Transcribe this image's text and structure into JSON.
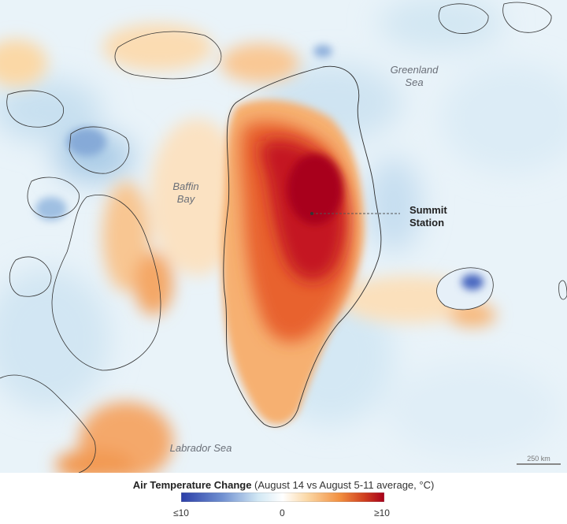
{
  "map": {
    "labels": {
      "greenland_sea_line1": "Greenland",
      "greenland_sea_line2": "Sea",
      "baffin_bay_line1": "Baffin",
      "baffin_bay_line2": "Bay",
      "labrador_sea": "Labrador Sea",
      "summit_station_line1": "Summit",
      "summit_station_line2": "Station"
    },
    "scale_bar": {
      "label": "250 km"
    }
  },
  "legend": {
    "title_bold": "Air Temperature Change",
    "title_rest": " (August 14 vs August 5-11 average, °C)",
    "min_label": "≤10",
    "mid_label": "0",
    "max_label": "≥10",
    "colors": [
      "#2b3ea8",
      "#6f8fd0",
      "#d2e8f4",
      "#ffffff",
      "#fbd8a6",
      "#f29040",
      "#d0401f",
      "#a8001a"
    ]
  }
}
